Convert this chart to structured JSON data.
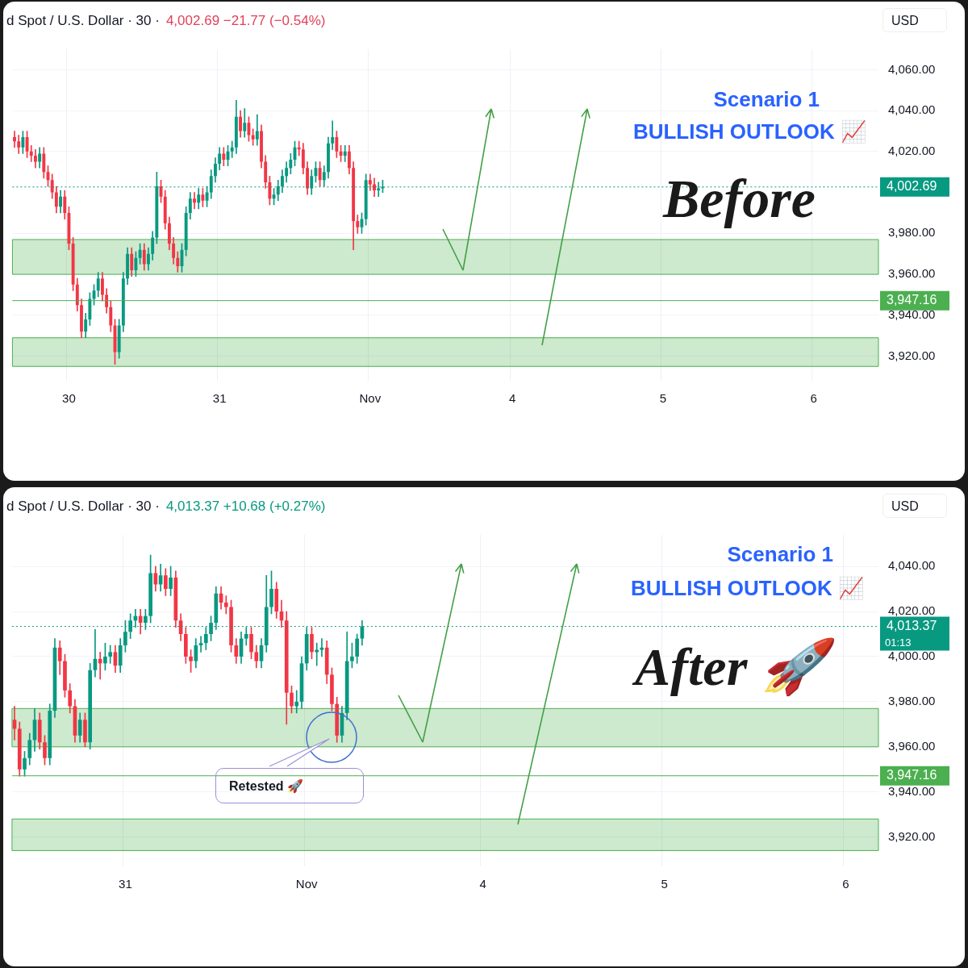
{
  "chart_data": [
    {
      "type": "candlestick",
      "title": "d Spot / U.S. Dollar · 30 ·",
      "subtitle": "4,002.69  −21.77 (−0.54%)",
      "ylabel": "USD",
      "grid": true,
      "categories": [
        null,
        null,
        null,
        null,
        null,
        null,
        null,
        null,
        null,
        null,
        null,
        null,
        null,
        "30",
        null,
        null,
        null,
        null,
        null,
        null,
        null,
        null,
        null,
        null,
        null,
        null,
        null,
        null,
        null,
        null,
        null,
        null,
        null,
        null,
        null,
        null,
        null,
        null,
        null,
        null,
        null,
        null,
        null,
        null,
        null,
        null,
        null,
        null,
        null,
        "31",
        null,
        null,
        null,
        null,
        null,
        null,
        null,
        null,
        null,
        null,
        null,
        null,
        null,
        null,
        null,
        null,
        null,
        null,
        null,
        null,
        null,
        null,
        null,
        null,
        null,
        null,
        null,
        null,
        null,
        null,
        null,
        null,
        null,
        null,
        null,
        "Nov",
        null,
        null,
        null,
        null,
        null,
        null,
        null,
        null,
        null,
        null,
        null,
        null,
        null,
        null,
        null,
        null,
        null,
        null,
        null,
        null,
        null,
        null,
        null,
        null,
        null,
        null,
        null,
        null,
        null,
        null,
        null,
        null,
        null,
        "4",
        null,
        null,
        null,
        null,
        null,
        null,
        null,
        null,
        null,
        null,
        null,
        null,
        null,
        null,
        null,
        null,
        null,
        null,
        null,
        null,
        null,
        null,
        null,
        null,
        null,
        null,
        null,
        null,
        null,
        null,
        null,
        null,
        null,
        null,
        null,
        "5",
        null,
        null,
        null,
        null,
        null,
        null,
        null,
        null,
        null,
        null,
        null,
        null,
        null,
        null,
        null,
        null,
        null,
        null,
        null,
        null,
        null,
        null,
        null,
        null,
        null,
        null,
        null,
        null,
        null,
        null,
        null,
        null,
        null,
        null,
        null,
        "6",
        null,
        null,
        null,
        null,
        null,
        null,
        null,
        null,
        null,
        null,
        null,
        null,
        null,
        null,
        null
      ],
      "ohlc": [
        [
          4027,
          4030,
          4022,
          4025
        ],
        [
          4025,
          4028,
          4019,
          4022
        ],
        [
          4022,
          4030,
          4019,
          4027
        ],
        [
          4027,
          4030,
          4017,
          4020
        ],
        [
          4020,
          4023,
          4015,
          4018
        ],
        [
          4018,
          4021,
          4012,
          4015
        ],
        [
          4015,
          4022,
          4012,
          4019
        ],
        [
          4019,
          4022,
          4007,
          4010
        ],
        [
          4010,
          4013,
          4003,
          4006
        ],
        [
          4006,
          4009,
          3997,
          4000
        ],
        [
          4000,
          4003,
          3990,
          3993
        ],
        [
          3993,
          4001,
          3990,
          3998
        ],
        [
          3998,
          4001,
          3987,
          3990
        ],
        [
          3990,
          3993,
          3972,
          3975
        ],
        [
          3975,
          3978,
          3952,
          3955
        ],
        [
          3955,
          3958,
          3942,
          3945
        ],
        [
          3945,
          3948,
          3929,
          3932
        ],
        [
          3932,
          3941,
          3929,
          3938
        ],
        [
          3938,
          3951,
          3935,
          3948
        ],
        [
          3948,
          3955,
          3945,
          3952
        ],
        [
          3952,
          3961,
          3949,
          3958
        ],
        [
          3958,
          3961,
          3947,
          3950
        ],
        [
          3950,
          3953,
          3941,
          3944
        ],
        [
          3944,
          3947,
          3932,
          3935
        ],
        [
          3935,
          3938,
          3916,
          3922
        ],
        [
          3922,
          3938,
          3919,
          3935
        ],
        [
          3935,
          3961,
          3932,
          3958
        ],
        [
          3958,
          3973,
          3955,
          3970
        ],
        [
          3970,
          3973,
          3959,
          3962
        ],
        [
          3962,
          3971,
          3959,
          3968
        ],
        [
          3968,
          3975,
          3965,
          3972
        ],
        [
          3972,
          3975,
          3962,
          3965
        ],
        [
          3965,
          3973,
          3962,
          3970
        ],
        [
          3970,
          3981,
          3967,
          3978
        ],
        [
          3978,
          4010,
          3975,
          4003
        ],
        [
          4003,
          4006,
          3995,
          3998
        ],
        [
          3998,
          4001,
          3982,
          3985
        ],
        [
          3985,
          3988,
          3972,
          3975
        ],
        [
          3975,
          3978,
          3965,
          3968
        ],
        [
          3968,
          3971,
          3961,
          3964
        ],
        [
          3964,
          3975,
          3961,
          3972
        ],
        [
          3972,
          3993,
          3969,
          3990
        ],
        [
          3990,
          4000,
          3987,
          3997
        ],
        [
          3997,
          4000,
          3992,
          3995
        ],
        [
          3995,
          4002,
          3992,
          3999
        ],
        [
          3999,
          4002,
          3993,
          3996
        ],
        [
          3996,
          4003,
          3993,
          4000
        ],
        [
          4000,
          4011,
          3997,
          4008
        ],
        [
          4008,
          4017,
          4005,
          4014
        ],
        [
          4014,
          4022,
          4011,
          4019
        ],
        [
          4019,
          4022,
          4013,
          4016
        ],
        [
          4016,
          4023,
          4013,
          4020
        ],
        [
          4020,
          4025,
          4017,
          4022
        ],
        [
          4022,
          4045,
          4019,
          4037
        ],
        [
          4037,
          4040,
          4027,
          4030
        ],
        [
          4030,
          4041,
          4027,
          4034
        ],
        [
          4034,
          4037,
          4025,
          4028
        ],
        [
          4028,
          4031,
          4023,
          4026
        ],
        [
          4026,
          4038,
          4023,
          4030
        ],
        [
          4030,
          4033,
          4012,
          4015
        ],
        [
          4015,
          4018,
          4002,
          4005
        ],
        [
          4005,
          4008,
          3994,
          3997
        ],
        [
          3997,
          4002,
          3994,
          3999
        ],
        [
          3999,
          4006,
          3996,
          4003
        ],
        [
          4003,
          4011,
          4000,
          4008
        ],
        [
          4008,
          4015,
          4005,
          4012
        ],
        [
          4012,
          4019,
          4009,
          4016
        ],
        [
          4016,
          4025,
          4013,
          4022
        ],
        [
          4022,
          4025,
          4018,
          4021
        ],
        [
          4021,
          4024,
          4009,
          4012
        ],
        [
          4012,
          4015,
          3999,
          4002
        ],
        [
          4002,
          4011,
          3999,
          4008
        ],
        [
          4008,
          4015,
          4005,
          4012
        ],
        [
          4012,
          4015,
          4003,
          4006
        ],
        [
          4006,
          4013,
          4003,
          4010
        ],
        [
          4010,
          4027,
          4007,
          4024
        ],
        [
          4024,
          4035,
          4021,
          4027
        ],
        [
          4027,
          4030,
          4017,
          4020
        ],
        [
          4020,
          4023,
          4015,
          4018
        ],
        [
          4018,
          4023,
          4015,
          4020
        ],
        [
          4020,
          4023,
          4009,
          4012
        ],
        [
          4012,
          4015,
          3972,
          3986
        ],
        [
          3986,
          3989,
          3980,
          3983
        ],
        [
          3983,
          3990,
          3980,
          3987
        ],
        [
          3987,
          4009,
          3984,
          4006
        ],
        [
          4006,
          4009,
          4001,
          4004
        ],
        [
          4004,
          4007,
          3998,
          4001
        ],
        [
          4001,
          4005,
          3998,
          4002
        ],
        [
          4002,
          4006,
          4000,
          4002.69
        ],
        null,
        null,
        null,
        null,
        null,
        null,
        null,
        null,
        null,
        null,
        null,
        null,
        null,
        null,
        null,
        null,
        null,
        null,
        null,
        null,
        null,
        null,
        null,
        null,
        null,
        null,
        null,
        null,
        null,
        null,
        null,
        null,
        null,
        null,
        null,
        null,
        null,
        null,
        null,
        null,
        null,
        null,
        null,
        null,
        null,
        null,
        null,
        null,
        null,
        null,
        null,
        null,
        null,
        null,
        null,
        null,
        null,
        null,
        null,
        null,
        null,
        null,
        null,
        null,
        null,
        null,
        null,
        null,
        null,
        null,
        null,
        null,
        null,
        null,
        null,
        null,
        null,
        null,
        null,
        null,
        null,
        null,
        null,
        null,
        null,
        null,
        null,
        null,
        null,
        null,
        null,
        null,
        null,
        null,
        null,
        null,
        null,
        null,
        null,
        null,
        null,
        null,
        null,
        null,
        null,
        null,
        null,
        null,
        null,
        null,
        null,
        null,
        null,
        null,
        null,
        null,
        null,
        null
      ],
      "ylim": [
        3908,
        4070
      ],
      "yticks": [
        {
          "value": 3920,
          "label": "3,920.00"
        },
        {
          "value": 3940,
          "label": "3,940.00"
        },
        {
          "value": 3960,
          "label": "3,960.00"
        },
        {
          "value": 3980,
          "label": "3,980.00"
        },
        {
          "value": 4020,
          "label": "4,020.00"
        },
        {
          "value": 4040,
          "label": "4,040.00"
        },
        {
          "value": 4060,
          "label": "4,060.00"
        }
      ],
      "bands": [
        {
          "axis": "y",
          "from": 3960,
          "to": 3977,
          "color": "#4caf50"
        },
        {
          "axis": "y",
          "from": 3915,
          "to": 3929,
          "color": "#4caf50"
        }
      ],
      "ref_lines": [
        {
          "axis": "y",
          "value": 4002.69,
          "label": "4,002.69",
          "color": "#089981",
          "line_style": "dotted"
        },
        {
          "axis": "y",
          "value": 3947.16,
          "label": "3,947.16",
          "color": "#4caf50",
          "line_style": "solid"
        }
      ],
      "annotations": [
        "Scenario 1",
        "BULLISH OUTLOOK 📈",
        "Before"
      ]
    },
    {
      "type": "candlestick",
      "title": "d Spot / U.S. Dollar · 30 ·",
      "subtitle": "4,013.37  +10.68 (+0.27%)",
      "ylabel": "USD",
      "grid": true,
      "categories": [
        null,
        null,
        null,
        null,
        null,
        null,
        null,
        null,
        null,
        null,
        null,
        null,
        null,
        null,
        null,
        null,
        null,
        null,
        null,
        null,
        null,
        null,
        "31",
        null,
        null,
        null,
        null,
        null,
        null,
        null,
        null,
        null,
        null,
        null,
        null,
        null,
        null,
        null,
        null,
        null,
        null,
        null,
        null,
        null,
        null,
        null,
        null,
        null,
        null,
        null,
        null,
        null,
        null,
        null,
        null,
        null,
        null,
        null,
        "Nov",
        null,
        null,
        null,
        null,
        null,
        null,
        null,
        null,
        null,
        null,
        null,
        null,
        null,
        null,
        null,
        null,
        null,
        null,
        null,
        null,
        null,
        null,
        null,
        null,
        null,
        null,
        null,
        null,
        null,
        null,
        null,
        null,
        null,
        null,
        "4",
        null,
        null,
        null,
        null,
        null,
        null,
        null,
        null,
        null,
        null,
        null,
        null,
        null,
        null,
        null,
        null,
        null,
        null,
        null,
        null,
        null,
        null,
        null,
        null,
        null,
        null,
        null,
        null,
        null,
        null,
        null,
        null,
        null,
        null,
        null,
        "5",
        null,
        null,
        null,
        null,
        null,
        null,
        null,
        null,
        null,
        null,
        null,
        null,
        null,
        null,
        null,
        null,
        null,
        null,
        null,
        null,
        null,
        null,
        null,
        null,
        null,
        null,
        null,
        null,
        null,
        null,
        null,
        null,
        null,
        null,
        null,
        "6",
        null,
        null,
        null,
        null,
        null,
        null
      ],
      "ohlc": [
        [
          3972,
          3978,
          3963,
          3968
        ],
        [
          3968,
          3971,
          3947,
          3950
        ],
        [
          3950,
          3958,
          3947,
          3955
        ],
        [
          3955,
          3966,
          3952,
          3963
        ],
        [
          3963,
          3977,
          3958,
          3972
        ],
        [
          3972,
          3975,
          3959,
          3962
        ],
        [
          3962,
          3965,
          3952,
          3955
        ],
        [
          3955,
          3979,
          3952,
          3976
        ],
        [
          3976,
          4008,
          3973,
          4004
        ],
        [
          4004,
          4007,
          3992,
          3998
        ],
        [
          3998,
          4001,
          3982,
          3985
        ],
        [
          3985,
          3988,
          3975,
          3978
        ],
        [
          3978,
          3981,
          3962,
          3965
        ],
        [
          3965,
          3975,
          3962,
          3972
        ],
        [
          3972,
          3975,
          3960,
          3962
        ],
        [
          3962,
          3997,
          3959,
          3994
        ],
        [
          3994,
          4012,
          3991,
          3999
        ],
        [
          3999,
          4002,
          3990,
          3997
        ],
        [
          3997,
          4006,
          3994,
          4000
        ],
        [
          4000,
          4005,
          3997,
          4002
        ],
        [
          4002,
          4005,
          3993,
          3996
        ],
        [
          3996,
          4008,
          3993,
          4005
        ],
        [
          4005,
          4016,
          4002,
          4011
        ],
        [
          4011,
          4019,
          4008,
          4016
        ],
        [
          4016,
          4021,
          4013,
          4018
        ],
        [
          4018,
          4021,
          4010,
          4015
        ],
        [
          4015,
          4021,
          4012,
          4018
        ],
        [
          4018,
          4045,
          4015,
          4037
        ],
        [
          4037,
          4040,
          4029,
          4032
        ],
        [
          4032,
          4041,
          4029,
          4036
        ],
        [
          4036,
          4039,
          4027,
          4030
        ],
        [
          4030,
          4040,
          4027,
          4035
        ],
        [
          4035,
          4038,
          4013,
          4016
        ],
        [
          4016,
          4019,
          4007,
          4010
        ],
        [
          4010,
          4013,
          3997,
          4000
        ],
        [
          4000,
          4003,
          3993,
          3998
        ],
        [
          3998,
          4008,
          3995,
          4005
        ],
        [
          4005,
          4009,
          4002,
          4006
        ],
        [
          4006,
          4013,
          4003,
          4010
        ],
        [
          4010,
          4018,
          4007,
          4015
        ],
        [
          4015,
          4031,
          4012,
          4028
        ],
        [
          4028,
          4031,
          4021,
          4024
        ],
        [
          4024,
          4027,
          4019,
          4022
        ],
        [
          4022,
          4025,
          4002,
          4005
        ],
        [
          4005,
          4008,
          3997,
          4000
        ],
        [
          4000,
          4011,
          3997,
          4008
        ],
        [
          4008,
          4013,
          4005,
          4010
        ],
        [
          4010,
          4013,
          3999,
          4002
        ],
        [
          4002,
          4005,
          3995,
          3998
        ],
        [
          3998,
          4008,
          3995,
          4005
        ],
        [
          4005,
          4036,
          4002,
          4022
        ],
        [
          4022,
          4038,
          4019,
          4030
        ],
        [
          4030,
          4033,
          4017,
          4020
        ],
        [
          4020,
          4025,
          4013,
          4016
        ],
        [
          4016,
          4020,
          3970,
          3984
        ],
        [
          3984,
          3987,
          3975,
          3978
        ],
        [
          3978,
          3985,
          3975,
          3980
        ],
        [
          3980,
          4000,
          3977,
          3997
        ],
        [
          3997,
          4013,
          3994,
          4010
        ],
        [
          4010,
          4013,
          3999,
          4002
        ],
        [
          4002,
          4006,
          3996,
          4003
        ],
        [
          4003,
          4008,
          4000,
          4004
        ],
        [
          4004,
          4007,
          3988,
          3992
        ],
        [
          3992,
          3995,
          3976,
          3979
        ],
        [
          3979,
          3982,
          3962,
          3965
        ],
        [
          3965,
          3978,
          3962,
          3975
        ],
        [
          3975,
          4011,
          3972,
          3998
        ],
        [
          3998,
          4006,
          3995,
          4000
        ],
        [
          4000,
          4010,
          3997,
          4008
        ],
        [
          4008,
          4016,
          4005,
          4013.37
        ],
        null,
        null,
        null,
        null,
        null,
        null,
        null,
        null,
        null,
        null,
        null,
        null,
        null,
        null,
        null,
        null,
        null,
        null,
        null,
        null,
        null,
        null,
        null,
        null,
        null,
        null,
        null,
        null,
        null,
        null,
        null,
        null,
        null,
        null,
        null,
        null,
        null,
        null,
        null,
        null,
        null,
        null,
        null,
        null,
        null,
        null,
        null,
        null,
        null,
        null,
        null,
        null,
        null,
        null,
        null,
        null,
        null,
        null,
        null,
        null,
        null,
        null,
        null,
        null,
        null,
        null,
        null,
        null,
        null,
        null,
        null,
        null,
        null,
        null,
        null,
        null,
        null,
        null,
        null,
        null,
        null,
        null,
        null,
        null,
        null,
        null,
        null,
        null,
        null,
        null,
        null,
        null,
        null,
        null,
        null,
        null,
        null,
        null,
        null,
        null,
        null,
        null
      ],
      "ylim": [
        3907,
        4054
      ],
      "yticks": [
        {
          "value": 3920,
          "label": "3,920.00"
        },
        {
          "value": 3940,
          "label": "3,940.00"
        },
        {
          "value": 3960,
          "label": "3,960.00"
        },
        {
          "value": 3980,
          "label": "3,980.00"
        },
        {
          "value": 4000,
          "label": "4,000.00"
        },
        {
          "value": 4020,
          "label": "4,020.00"
        },
        {
          "value": 4040,
          "label": "4,040.00"
        }
      ],
      "bands": [
        {
          "axis": "y",
          "from": 3960,
          "to": 3977,
          "color": "#4caf50"
        },
        {
          "axis": "y",
          "from": 3914,
          "to": 3928,
          "color": "#4caf50"
        }
      ],
      "ref_lines": [
        {
          "axis": "y",
          "value": 4013.37,
          "label": "4,013.37",
          "color": "#089981",
          "line_style": "dotted"
        },
        {
          "axis": "y",
          "value": 3947.16,
          "label": "3,947.16",
          "color": "#4caf50",
          "line_style": "solid"
        }
      ],
      "annotations": [
        "Scenario 1",
        "BULLISH OUTLOOK 📈",
        "After 🚀",
        "Retested 🚀",
        "01:13"
      ]
    }
  ]
}
